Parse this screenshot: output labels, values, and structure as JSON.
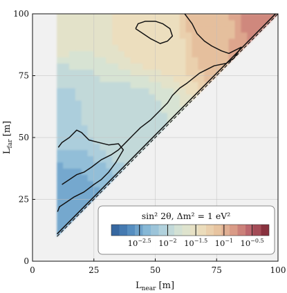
{
  "chart_data": {
    "type": "heatmap",
    "description_of_values": "filled contour map of sin^2 2θ sensitivity over the (L_near, L_far) plane, defined only where L_far > L_near; log10 values",
    "xlabel_main": "L",
    "xlabel_sub": "near",
    "xlabel_unit": "[m]",
    "ylabel_main": "L",
    "ylabel_sub": "far",
    "ylabel_unit": "[m]",
    "xlim": [
      0,
      100
    ],
    "ylim": [
      0,
      100
    ],
    "xticks": [
      0,
      25,
      50,
      75,
      100
    ],
    "yticks": [
      0,
      25,
      50,
      75,
      100
    ],
    "xtick_labels": [
      "0",
      "25",
      "50",
      "75",
      "100"
    ],
    "ytick_labels": [
      "0",
      "25",
      "50",
      "75",
      "100"
    ],
    "grid": true,
    "domain_x_min": 10,
    "colorbar": {
      "title": "sin² 2θ, Δm² = 1 eV²",
      "position": "bottom-right",
      "scale": "log",
      "range_log10": [
        -3.0,
        -0.2
      ],
      "ticks_log10": [
        -2.5,
        -2.0,
        -1.5,
        -1.0,
        -0.5
      ],
      "tick_bases": [
        "10",
        "10",
        "10",
        "10",
        "10"
      ],
      "tick_exponents": [
        "−2.5",
        "−2",
        "−1.5",
        "−1",
        "−0.5"
      ],
      "colors": [
        "#2f5d97",
        "#4f88bd",
        "#86b7d6",
        "#b5d3dd",
        "#d9e4d2",
        "#ece0c0",
        "#e8c7a2",
        "#d99a86",
        "#b8606a",
        "#7a2431"
      ]
    },
    "field_samples": [
      {
        "x": 10,
        "y": 15,
        "v": -2.55
      },
      {
        "x": 10,
        "y": 30,
        "v": -2.4
      },
      {
        "x": 10,
        "y": 60,
        "v": -2.05
      },
      {
        "x": 10,
        "y": 100,
        "v": -1.6
      },
      {
        "x": 40,
        "y": 60,
        "v": -1.9
      },
      {
        "x": 50,
        "y": 90,
        "v": -1.45
      },
      {
        "x": 75,
        "y": 95,
        "v": -1.05
      },
      {
        "x": 90,
        "y": 98,
        "v": -0.8
      },
      {
        "x": 95,
        "y": 99,
        "v": -0.65
      }
    ],
    "contours": [
      {
        "level_log10": -2.0,
        "points": [
          [
            10.5,
            46
          ],
          [
            12,
            48
          ],
          [
            15,
            50
          ],
          [
            18,
            53
          ],
          [
            20,
            52
          ],
          [
            23,
            49
          ],
          [
            27,
            48
          ],
          [
            31,
            47
          ],
          [
            35,
            47.5
          ],
          [
            37,
            45
          ],
          [
            34,
            40
          ],
          [
            31,
            36
          ],
          [
            28,
            33
          ],
          [
            25,
            31
          ],
          [
            21,
            28
          ],
          [
            17,
            26
          ],
          [
            14,
            24
          ],
          [
            11,
            22
          ],
          [
            10.2,
            20
          ]
        ]
      },
      {
        "level_log10": -1.0,
        "points": [
          [
            62,
            100
          ],
          [
            65,
            96
          ],
          [
            67,
            92
          ],
          [
            70,
            89
          ],
          [
            73,
            87
          ],
          [
            77,
            85
          ],
          [
            80,
            84
          ],
          [
            83,
            85.5
          ],
          [
            85,
            86.5
          ],
          [
            82,
            82
          ],
          [
            79,
            80
          ],
          [
            74,
            79
          ],
          [
            68,
            76
          ],
          [
            63,
            72
          ],
          [
            60,
            70
          ],
          [
            57,
            67
          ],
          [
            55,
            64
          ],
          [
            52,
            61
          ],
          [
            48,
            57
          ],
          [
            44,
            54
          ],
          [
            41,
            51
          ],
          [
            38,
            48
          ],
          [
            35,
            45
          ],
          [
            32,
            43
          ],
          [
            28,
            41
          ],
          [
            24,
            38
          ],
          [
            21,
            36
          ],
          [
            18,
            35
          ],
          [
            15,
            33
          ],
          [
            12,
            31
          ]
        ]
      },
      {
        "level_log10": -1.0,
        "points": [
          [
            42,
            94
          ],
          [
            45,
            92
          ],
          [
            48,
            90
          ],
          [
            52,
            88
          ],
          [
            55,
            89
          ],
          [
            57,
            91
          ],
          [
            56,
            94
          ],
          [
            53,
            96
          ],
          [
            50,
            97
          ],
          [
            46,
            97
          ],
          [
            43,
            96
          ],
          [
            42,
            94
          ]
        ]
      }
    ]
  }
}
